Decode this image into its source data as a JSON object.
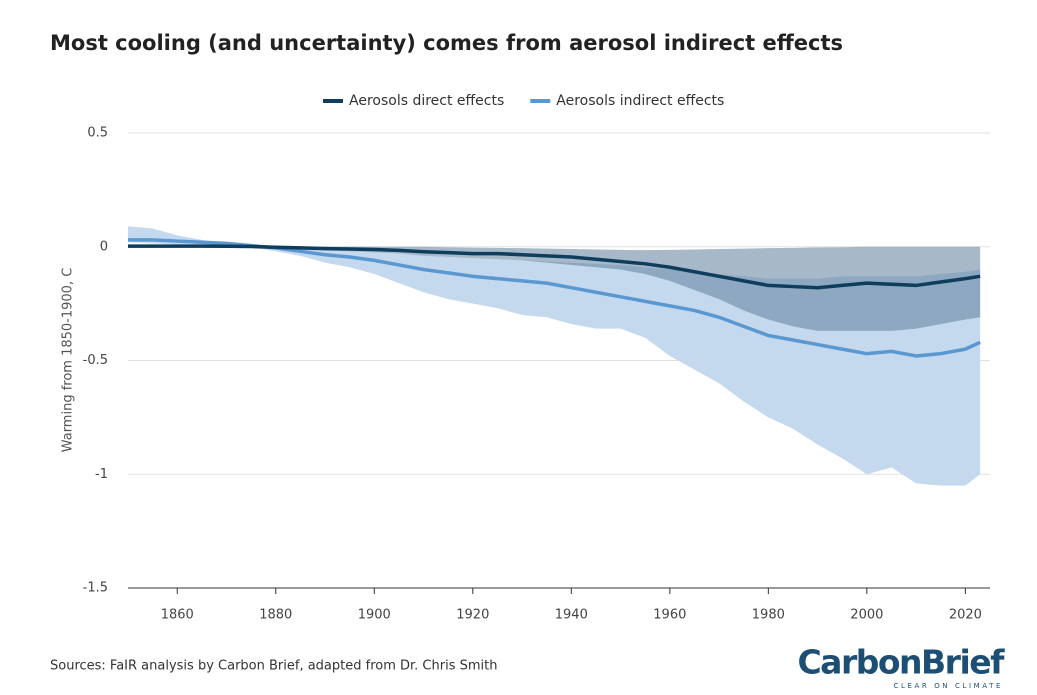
{
  "chart_data": {
    "type": "line",
    "title": "Most cooling (and uncertainty) comes from aerosol indirect effects",
    "ylabel": "Warming from 1850-1900, C",
    "source": "Sources: FaIR analysis by Carbon Brief, adapted from Dr. Chris Smith",
    "logo": "CarbonBrief",
    "logo_tagline": "CLEAR ON CLIMATE",
    "x": [
      1850,
      1855,
      1860,
      1865,
      1870,
      1875,
      1880,
      1885,
      1890,
      1895,
      1900,
      1905,
      1910,
      1915,
      1920,
      1925,
      1930,
      1935,
      1940,
      1945,
      1950,
      1955,
      1960,
      1965,
      1970,
      1975,
      1980,
      1985,
      1990,
      1995,
      2000,
      2005,
      2010,
      2015,
      2020,
      2023
    ],
    "series": [
      {
        "name": "Aerosols direct effects",
        "color": "#0f3d5e",
        "band_color": "#5f7f9a",
        "values": [
          0.003,
          0.003,
          0.003,
          0.003,
          0.002,
          0.001,
          -0.002,
          -0.005,
          -0.008,
          -0.01,
          -0.012,
          -0.016,
          -0.022,
          -0.026,
          -0.03,
          -0.03,
          -0.035,
          -0.04,
          -0.045,
          -0.055,
          -0.065,
          -0.075,
          -0.09,
          -0.11,
          -0.13,
          -0.15,
          -0.17,
          -0.175,
          -0.18,
          -0.17,
          -0.16,
          -0.165,
          -0.17,
          -0.155,
          -0.14,
          -0.13
        ],
        "lower": [
          -0.005,
          -0.005,
          -0.004,
          -0.004,
          -0.003,
          -0.002,
          -0.005,
          -0.01,
          -0.015,
          -0.02,
          -0.025,
          -0.03,
          -0.04,
          -0.045,
          -0.05,
          -0.055,
          -0.06,
          -0.07,
          -0.08,
          -0.09,
          -0.1,
          -0.12,
          -0.15,
          -0.19,
          -0.23,
          -0.28,
          -0.32,
          -0.35,
          -0.37,
          -0.37,
          -0.37,
          -0.37,
          -0.36,
          -0.34,
          -0.32,
          -0.31
        ],
        "upper": [
          0.01,
          0.01,
          0.01,
          0.008,
          0.006,
          0.004,
          0.001,
          0,
          0,
          0,
          0,
          0,
          0,
          -0.002,
          -0.004,
          -0.005,
          -0.006,
          -0.008,
          -0.01,
          -0.012,
          -0.014,
          -0.015,
          -0.014,
          -0.012,
          -0.01,
          -0.008,
          -0.006,
          -0.005,
          -0.003,
          -0.002,
          0,
          0,
          0,
          0,
          0,
          0
        ]
      },
      {
        "name": "Aerosols indirect effects",
        "color": "#5b97d1",
        "band_color": "#c5d9ee",
        "values": [
          0.03,
          0.03,
          0.025,
          0.02,
          0.015,
          0.005,
          -0.005,
          -0.02,
          -0.035,
          -0.045,
          -0.06,
          -0.08,
          -0.1,
          -0.115,
          -0.13,
          -0.14,
          -0.15,
          -0.16,
          -0.18,
          -0.2,
          -0.22,
          -0.24,
          -0.26,
          -0.28,
          -0.31,
          -0.35,
          -0.39,
          -0.41,
          -0.43,
          -0.45,
          -0.47,
          -0.46,
          -0.48,
          -0.47,
          -0.45,
          -0.42
        ],
        "lower": [
          0.02,
          0.015,
          0.01,
          0.005,
          0.002,
          -0.002,
          -0.02,
          -0.04,
          -0.07,
          -0.09,
          -0.12,
          -0.16,
          -0.2,
          -0.23,
          -0.25,
          -0.27,
          -0.3,
          -0.31,
          -0.34,
          -0.36,
          -0.36,
          -0.4,
          -0.48,
          -0.54,
          -0.6,
          -0.68,
          -0.75,
          -0.8,
          -0.87,
          -0.93,
          -1.0,
          -0.97,
          -1.04,
          -1.05,
          -1.05,
          -1.0
        ],
        "upper": [
          0.09,
          0.08,
          0.05,
          0.03,
          0.015,
          0.006,
          0,
          -0.01,
          -0.015,
          -0.02,
          -0.025,
          -0.03,
          -0.04,
          -0.045,
          -0.05,
          -0.055,
          -0.06,
          -0.065,
          -0.07,
          -0.075,
          -0.08,
          -0.09,
          -0.1,
          -0.11,
          -0.12,
          -0.13,
          -0.14,
          -0.14,
          -0.14,
          -0.13,
          -0.13,
          -0.13,
          -0.13,
          -0.12,
          -0.11,
          -0.1
        ]
      }
    ],
    "xlim": [
      1850,
      2025
    ],
    "xticks": [
      1860,
      1880,
      1900,
      1920,
      1940,
      1960,
      1980,
      2000,
      2020
    ],
    "ylim": [
      -1.5,
      0.5
    ],
    "yticks": [
      -1.5,
      -1,
      -0.5,
      0,
      0.5
    ],
    "grid": true,
    "legend": "top"
  }
}
